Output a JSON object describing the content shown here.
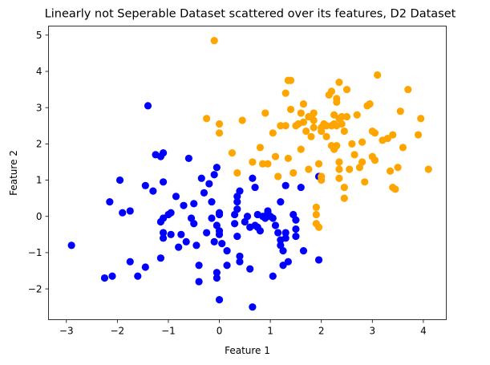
{
  "chart_data": {
    "type": "scatter",
    "title": "Linearly not Seperable Dataset scattered over its features, D2 Dataset",
    "xlabel": "Feature 1",
    "ylabel": "Feature 2",
    "xlim": [
      -3.35,
      4.45
    ],
    "ylim": [
      -2.85,
      5.25
    ],
    "xticks": [
      -3,
      -2,
      -1,
      0,
      1,
      2,
      3,
      4
    ],
    "yticks": [
      -2,
      -1,
      0,
      1,
      2,
      3,
      4,
      5
    ],
    "grid": false,
    "legend": "none",
    "series": [
      {
        "color": "#0000ff",
        "points": [
          [
            -2.9,
            -0.8
          ],
          [
            -2.25,
            -1.7
          ],
          [
            -2.1,
            -1.65
          ],
          [
            -2.15,
            0.4
          ],
          [
            -1.95,
            1.0
          ],
          [
            -1.9,
            0.1
          ],
          [
            -1.75,
            0.15
          ],
          [
            -1.75,
            -1.25
          ],
          [
            -1.6,
            -1.65
          ],
          [
            -1.45,
            -1.4
          ],
          [
            -1.45,
            0.85
          ],
          [
            -1.4,
            3.05
          ],
          [
            -1.3,
            0.7
          ],
          [
            -1.25,
            1.7
          ],
          [
            -1.15,
            1.65
          ],
          [
            -1.1,
            1.75
          ],
          [
            -1.15,
            -0.15
          ],
          [
            -1.1,
            -0.05
          ],
          [
            -1.0,
            0.05
          ],
          [
            -0.95,
            0.1
          ],
          [
            -1.1,
            -0.45
          ],
          [
            -1.1,
            -0.6
          ],
          [
            -0.95,
            -0.5
          ],
          [
            -1.15,
            -1.15
          ],
          [
            -1.1,
            0.95
          ],
          [
            -0.85,
            0.55
          ],
          [
            -0.8,
            -0.85
          ],
          [
            -0.75,
            -0.5
          ],
          [
            -0.7,
            0.3
          ],
          [
            -0.65,
            -0.7
          ],
          [
            -0.6,
            1.6
          ],
          [
            -0.55,
            -0.05
          ],
          [
            -0.5,
            -0.2
          ],
          [
            -0.5,
            0.35
          ],
          [
            -0.45,
            -0.8
          ],
          [
            -0.4,
            -1.35
          ],
          [
            -0.4,
            -1.8
          ],
          [
            -0.35,
            1.05
          ],
          [
            -0.3,
            0.65
          ],
          [
            -0.25,
            -0.45
          ],
          [
            -0.2,
            0.9
          ],
          [
            -0.15,
            0.4
          ],
          [
            -0.15,
            -0.05
          ],
          [
            -0.1,
            1.15
          ],
          [
            -0.1,
            -0.7
          ],
          [
            -0.05,
            1.35
          ],
          [
            -0.05,
            -1.55
          ],
          [
            0.0,
            0.1
          ],
          [
            0.0,
            0.05
          ],
          [
            -0.05,
            -0.25
          ],
          [
            0.0,
            -0.4
          ],
          [
            0.0,
            -0.5
          ],
          [
            0.05,
            -0.75
          ],
          [
            -0.05,
            -1.7
          ],
          [
            0.0,
            -2.3
          ],
          [
            0.15,
            -0.95
          ],
          [
            0.15,
            -1.35
          ],
          [
            0.3,
            -0.2
          ],
          [
            0.3,
            0.05
          ],
          [
            0.35,
            0.2
          ],
          [
            0.35,
            0.4
          ],
          [
            0.35,
            0.55
          ],
          [
            0.4,
            0.7
          ],
          [
            0.35,
            -0.55
          ],
          [
            0.4,
            -1.1
          ],
          [
            0.4,
            -1.25
          ],
          [
            0.5,
            -0.15
          ],
          [
            0.55,
            0.0
          ],
          [
            0.6,
            -0.3
          ],
          [
            0.6,
            -1.45
          ],
          [
            0.65,
            1.05
          ],
          [
            0.65,
            -2.5
          ],
          [
            0.7,
            0.8
          ],
          [
            0.7,
            -0.25
          ],
          [
            0.75,
            0.05
          ],
          [
            0.75,
            -0.3
          ],
          [
            0.8,
            -0.4
          ],
          [
            0.85,
            0.0
          ],
          [
            0.9,
            -0.05
          ],
          [
            0.95,
            0.1
          ],
          [
            0.95,
            0.15
          ],
          [
            1.0,
            0.0
          ],
          [
            1.05,
            -0.05
          ],
          [
            1.05,
            -1.65
          ],
          [
            1.1,
            -0.25
          ],
          [
            1.15,
            -0.45
          ],
          [
            1.2,
            0.4
          ],
          [
            1.2,
            -0.65
          ],
          [
            1.2,
            -0.8
          ],
          [
            1.25,
            -0.95
          ],
          [
            1.25,
            -1.35
          ],
          [
            1.3,
            -0.45
          ],
          [
            1.3,
            -0.6
          ],
          [
            1.3,
            0.85
          ],
          [
            1.35,
            -1.25
          ],
          [
            1.45,
            0.05
          ],
          [
            1.5,
            -0.1
          ],
          [
            1.5,
            -0.35
          ],
          [
            1.5,
            -0.55
          ],
          [
            1.6,
            0.8
          ],
          [
            1.65,
            -0.95
          ],
          [
            1.95,
            1.1
          ],
          [
            1.95,
            -1.2
          ]
        ]
      },
      {
        "color": "#ffa500",
        "points": [
          [
            -0.1,
            4.85
          ],
          [
            -0.25,
            2.7
          ],
          [
            0.0,
            2.55
          ],
          [
            0.0,
            2.3
          ],
          [
            0.25,
            1.75
          ],
          [
            0.35,
            1.2
          ],
          [
            0.45,
            2.65
          ],
          [
            0.65,
            1.5
          ],
          [
            0.8,
            1.9
          ],
          [
            0.85,
            1.45
          ],
          [
            0.9,
            2.85
          ],
          [
            0.95,
            1.45
          ],
          [
            1.05,
            2.3
          ],
          [
            1.1,
            1.65
          ],
          [
            1.15,
            1.1
          ],
          [
            1.2,
            2.5
          ],
          [
            1.3,
            2.5
          ],
          [
            1.3,
            3.4
          ],
          [
            1.35,
            3.75
          ],
          [
            1.4,
            3.75
          ],
          [
            1.4,
            2.95
          ],
          [
            1.35,
            1.6
          ],
          [
            1.45,
            1.2
          ],
          [
            1.5,
            2.5
          ],
          [
            1.55,
            2.55
          ],
          [
            1.6,
            2.85
          ],
          [
            1.65,
            3.1
          ],
          [
            1.65,
            2.6
          ],
          [
            1.6,
            1.85
          ],
          [
            1.7,
            2.35
          ],
          [
            1.75,
            2.75
          ],
          [
            1.75,
            1.3
          ],
          [
            1.8,
            2.2
          ],
          [
            1.85,
            2.45
          ],
          [
            1.85,
            2.65
          ],
          [
            1.85,
            2.85
          ],
          [
            1.9,
            0.25
          ],
          [
            1.9,
            0.05
          ],
          [
            1.9,
            -0.2
          ],
          [
            1.95,
            -0.3
          ],
          [
            1.95,
            1.45
          ],
          [
            2.0,
            2.35
          ],
          [
            2.0,
            2.45
          ],
          [
            2.0,
            1.1
          ],
          [
            2.0,
            1.0
          ],
          [
            2.05,
            2.55
          ],
          [
            2.1,
            2.5
          ],
          [
            2.1,
            2.2
          ],
          [
            2.15,
            3.35
          ],
          [
            2.2,
            3.45
          ],
          [
            2.2,
            2.5
          ],
          [
            2.2,
            1.95
          ],
          [
            2.25,
            2.8
          ],
          [
            2.25,
            1.85
          ],
          [
            2.25,
            2.55
          ],
          [
            2.3,
            3.25
          ],
          [
            2.3,
            3.15
          ],
          [
            2.3,
            2.5
          ],
          [
            2.3,
            1.95
          ],
          [
            2.35,
            1.3
          ],
          [
            2.35,
            1.05
          ],
          [
            2.35,
            1.5
          ],
          [
            2.35,
            3.7
          ],
          [
            2.35,
            2.7
          ],
          [
            2.4,
            2.55
          ],
          [
            2.4,
            2.75
          ],
          [
            2.45,
            2.35
          ],
          [
            2.45,
            0.8
          ],
          [
            2.45,
            0.5
          ],
          [
            2.5,
            2.75
          ],
          [
            2.5,
            3.5
          ],
          [
            2.55,
            1.3
          ],
          [
            2.6,
            2.0
          ],
          [
            2.65,
            1.7
          ],
          [
            2.7,
            2.8
          ],
          [
            2.75,
            1.35
          ],
          [
            2.8,
            2.05
          ],
          [
            2.8,
            1.5
          ],
          [
            2.85,
            0.95
          ],
          [
            2.9,
            3.05
          ],
          [
            2.95,
            3.1
          ],
          [
            3.0,
            2.35
          ],
          [
            3.0,
            1.65
          ],
          [
            3.05,
            2.3
          ],
          [
            3.05,
            1.55
          ],
          [
            3.1,
            3.9
          ],
          [
            3.2,
            2.1
          ],
          [
            3.3,
            2.15
          ],
          [
            3.35,
            1.25
          ],
          [
            3.4,
            2.25
          ],
          [
            3.4,
            0.8
          ],
          [
            3.45,
            0.75
          ],
          [
            3.5,
            1.35
          ],
          [
            3.55,
            2.9
          ],
          [
            3.6,
            1.9
          ],
          [
            3.7,
            3.5
          ],
          [
            3.9,
            2.25
          ],
          [
            3.95,
            2.7
          ],
          [
            4.1,
            1.3
          ]
        ]
      }
    ]
  }
}
